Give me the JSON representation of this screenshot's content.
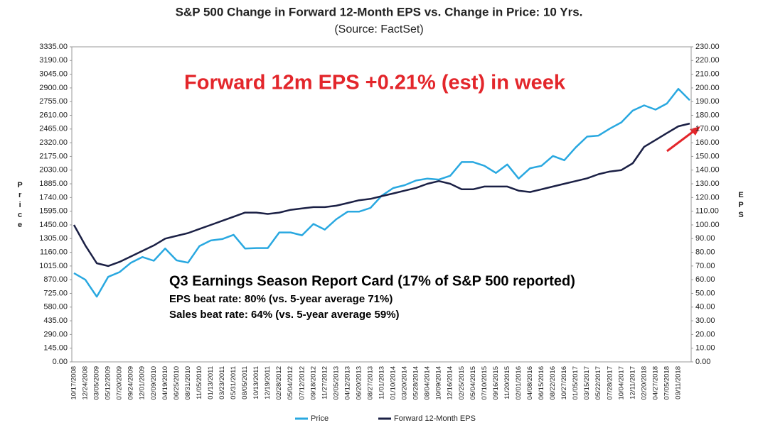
{
  "chart_data": {
    "type": "line",
    "title": "S&P 500 Change in Forward 12-Month EPS vs. Change in Price: 10 Yrs.",
    "subtitle": "(Source: FactSet)",
    "ylabel": "Price",
    "y2label": "EPS",
    "annotations": [
      "Forward 12m EPS +0.21% (est) in week",
      "Q3 Earnings Season Report Card (17% of S&P 500 reported)",
      "EPS beat rate: 80% (vs. 5-year average 71%)",
      "Sales beat rate: 64% (vs. 5-year average 59%)"
    ],
    "categories": [
      "10/17/2008",
      "12/24/2008",
      "03/05/2009",
      "05/12/2009",
      "07/20/2009",
      "09/24/2009",
      "12/01/2009",
      "02/09/2010",
      "04/19/2010",
      "06/25/2010",
      "08/31/2010",
      "11/05/2010",
      "01/13/2011",
      "03/23/2011",
      "05/31/2011",
      "08/05/2011",
      "10/13/2011",
      "12/19/2011",
      "02/28/2012",
      "05/04/2012",
      "07/12/2012",
      "09/18/2012",
      "11/27/2012",
      "02/05/2013",
      "04/12/2013",
      "06/20/2013",
      "08/27/2013",
      "11/01/2013",
      "01/10/2014",
      "03/20/2014",
      "05/28/2014",
      "08/04/2014",
      "10/09/2014",
      "12/16/2014",
      "02/25/2015",
      "05/04/2015",
      "07/10/2015",
      "09/16/2015",
      "11/20/2015",
      "02/01/2016",
      "04/08/2016",
      "06/15/2016",
      "08/22/2016",
      "10/27/2016",
      "01/05/2017",
      "03/15/2017",
      "05/22/2017",
      "07/28/2017",
      "10/04/2017",
      "12/11/2017",
      "02/20/2018",
      "04/27/2018",
      "07/05/2018",
      "09/11/2018",
      null
    ],
    "series": [
      {
        "name": "Price",
        "color": "#29a8e0",
        "values": [
          940,
          870,
          690,
          900,
          950,
          1050,
          1110,
          1070,
          1200,
          1075,
          1050,
          1225,
          1285,
          1300,
          1345,
          1200,
          1205,
          1205,
          1370,
          1370,
          1340,
          1460,
          1400,
          1510,
          1590,
          1590,
          1630,
          1760,
          1840,
          1870,
          1920,
          1940,
          1930,
          1970,
          2115,
          2115,
          2075,
          2000,
          2090,
          1940,
          2050,
          2075,
          2180,
          2135,
          2270,
          2385,
          2395,
          2470,
          2535,
          2660,
          2715,
          2670,
          2735,
          2890,
          2770
        ]
      },
      {
        "name": "Forward 12-Month EPS",
        "color": "#1b2045",
        "axis": "y2",
        "values": [
          100,
          85,
          72,
          70,
          73,
          77,
          81,
          85,
          90,
          92,
          94,
          97,
          100,
          103,
          106,
          109,
          109,
          108,
          109,
          111,
          112,
          113,
          113,
          114,
          116,
          118,
          119,
          121,
          123,
          125,
          127,
          130,
          132,
          130,
          126,
          126,
          128,
          128,
          128,
          125,
          124,
          126,
          128,
          130,
          132,
          134,
          137,
          139,
          140,
          145,
          157,
          162,
          167,
          172,
          174
        ]
      }
    ],
    "ylim": [
      0,
      3335
    ],
    "yticks": [
      {
        "value": 0,
        "label": "0.00"
      },
      {
        "value": 145,
        "label": "145.00"
      },
      {
        "value": 290,
        "label": "290.00"
      },
      {
        "value": 435,
        "label": "435.00"
      },
      {
        "value": 580,
        "label": "580.00"
      },
      {
        "value": 725,
        "label": "725.00"
      },
      {
        "value": 870,
        "label": "870.00"
      },
      {
        "value": 1015,
        "label": "1015.00"
      },
      {
        "value": 1160,
        "label": "1160.00"
      },
      {
        "value": 1305,
        "label": "1305.00"
      },
      {
        "value": 1450,
        "label": "1450.00"
      },
      {
        "value": 1595,
        "label": "1595.00"
      },
      {
        "value": 1740,
        "label": "1740.00"
      },
      {
        "value": 1885,
        "label": "1885.00"
      },
      {
        "value": 2030,
        "label": "2030.00"
      },
      {
        "value": 2175,
        "label": "2175.00"
      },
      {
        "value": 2320,
        "label": "2320.00"
      },
      {
        "value": 2465,
        "label": "2465.00"
      },
      {
        "value": 2610,
        "label": "2610.00"
      },
      {
        "value": 2755,
        "label": "2755.00"
      },
      {
        "value": 2900,
        "label": "2900.00"
      },
      {
        "value": 3045,
        "label": "3045.00"
      },
      {
        "value": 3190,
        "label": "3190.00"
      },
      {
        "value": 3335,
        "label": "3335.00"
      }
    ],
    "y2lim": [
      0,
      230
    ],
    "y2ticks": [
      {
        "value": 0,
        "label": "0.00"
      },
      {
        "value": 10,
        "label": "10.00"
      },
      {
        "value": 20,
        "label": "20.00"
      },
      {
        "value": 30,
        "label": "30.00"
      },
      {
        "value": 40,
        "label": "40.00"
      },
      {
        "value": 50,
        "label": "50.00"
      },
      {
        "value": 60,
        "label": "60.00"
      },
      {
        "value": 70,
        "label": "70.00"
      },
      {
        "value": 80,
        "label": "80.00"
      },
      {
        "value": 90,
        "label": "90.00"
      },
      {
        "value": 100,
        "label": "100.00"
      },
      {
        "value": 110,
        "label": "110.00"
      },
      {
        "value": 120,
        "label": "120.00"
      },
      {
        "value": 130,
        "label": "130.00"
      },
      {
        "value": 140,
        "label": "140.00"
      },
      {
        "value": 150,
        "label": "150.00"
      },
      {
        "value": 160,
        "label": "160.00"
      },
      {
        "value": 170,
        "label": "170.00"
      },
      {
        "value": 180,
        "label": "180.00"
      },
      {
        "value": 190,
        "label": "190.00"
      },
      {
        "value": 200,
        "label": "200.00"
      },
      {
        "value": 210,
        "label": "210.00"
      },
      {
        "value": 220,
        "label": "220.00"
      },
      {
        "value": 230,
        "label": "230.00"
      }
    ],
    "grid": false,
    "legend": "bottom"
  }
}
